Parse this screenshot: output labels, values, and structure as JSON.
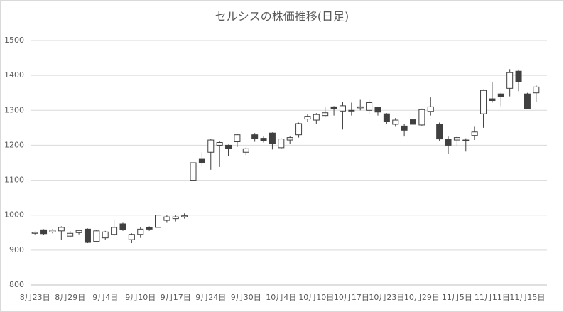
{
  "chart_data": {
    "type": "candlestick",
    "title": "セルシスの株価推移(日足)",
    "categories": [
      "8月23日",
      null,
      null,
      null,
      "8月29日",
      null,
      null,
      null,
      "9月4日",
      null,
      null,
      null,
      "9月10日",
      null,
      null,
      null,
      "9月17日",
      null,
      null,
      null,
      "9月24日",
      null,
      null,
      null,
      "9月30日",
      null,
      null,
      null,
      "10月4日",
      null,
      null,
      null,
      "10月10日",
      null,
      null,
      null,
      "10月17日",
      null,
      null,
      null,
      "10月23日",
      null,
      null,
      null,
      "10月29日",
      null,
      null,
      null,
      "11月5日",
      null,
      null,
      null,
      "11月11日",
      null,
      null,
      null,
      "11月15日",
      null
    ],
    "open": [
      948,
      958,
      952,
      955,
      940,
      950,
      960,
      925,
      935,
      945,
      975,
      930,
      945,
      965,
      965,
      985,
      990,
      995,
      1100,
      1160,
      1180,
      1200,
      1200,
      1210,
      1180,
      1230,
      1220,
      1235,
      1193,
      1215,
      1230,
      1275,
      1272,
      1285,
      1310,
      1298,
      1300,
      1307,
      1300,
      1308,
      1290,
      1260,
      1255,
      1273,
      1258,
      1297,
      1260,
      1218,
      1215,
      1215,
      1228,
      1290,
      1333,
      1347,
      1363,
      1412,
      1347,
      1350
    ],
    "high": [
      953,
      960,
      960,
      968,
      955,
      958,
      962,
      958,
      955,
      985,
      978,
      948,
      965,
      968,
      1000,
      1000,
      1000,
      1005,
      1150,
      1180,
      1218,
      1212,
      1202,
      1232,
      1193,
      1235,
      1225,
      1237,
      1220,
      1225,
      1265,
      1290,
      1292,
      1310,
      1312,
      1325,
      1322,
      1330,
      1330,
      1310,
      1292,
      1278,
      1262,
      1280,
      1305,
      1337,
      1265,
      1225,
      1225,
      1220,
      1255,
      1360,
      1380,
      1350,
      1418,
      1417,
      1350,
      1372
    ],
    "low": [
      945,
      944,
      948,
      930,
      938,
      945,
      920,
      922,
      930,
      940,
      955,
      920,
      935,
      955,
      962,
      978,
      982,
      990,
      1100,
      1140,
      1130,
      1138,
      1170,
      1195,
      1172,
      1210,
      1208,
      1188,
      1190,
      1205,
      1222,
      1268,
      1260,
      1280,
      1285,
      1245,
      1285,
      1300,
      1290,
      1285,
      1262,
      1255,
      1225,
      1242,
      1256,
      1285,
      1212,
      1175,
      1198,
      1182,
      1215,
      1250,
      1322,
      1312,
      1340,
      1355,
      1305,
      1325
    ],
    "close": [
      951,
      947,
      957,
      965,
      948,
      956,
      922,
      955,
      952,
      965,
      958,
      945,
      960,
      960,
      1000,
      995,
      995,
      998,
      1150,
      1150,
      1215,
      1208,
      1190,
      1230,
      1190,
      1220,
      1213,
      1205,
      1218,
      1222,
      1262,
      1283,
      1288,
      1293,
      1305,
      1313,
      1298,
      1310,
      1322,
      1295,
      1268,
      1272,
      1243,
      1260,
      1302,
      1310,
      1218,
      1200,
      1222,
      1213,
      1238,
      1357,
      1328,
      1340,
      1408,
      1383,
      1305,
      1367
    ],
    "up_color": "#ffffff",
    "down_color": "#404040",
    "line_color": "#404040",
    "ylim": [
      800,
      1500
    ],
    "yticks": [
      800,
      900,
      1000,
      1100,
      1200,
      1300,
      1400,
      1500
    ],
    "grid": true
  }
}
